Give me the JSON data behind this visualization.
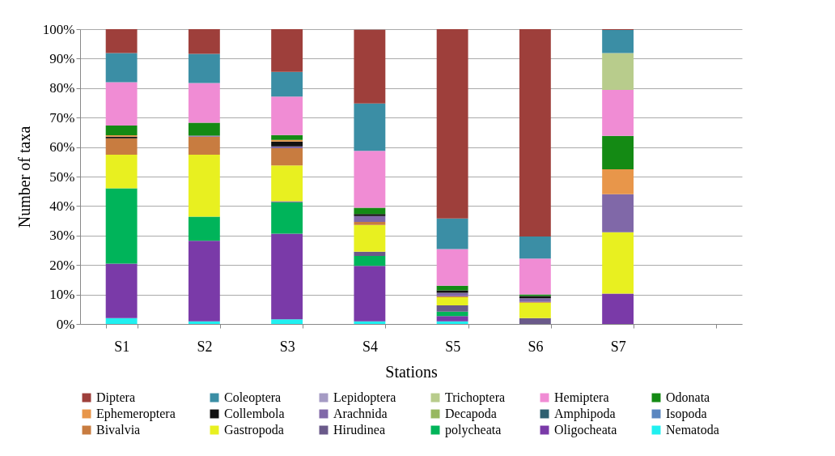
{
  "chart_data": {
    "type": "bar",
    "stacked": true,
    "xlabel": "Stations",
    "ylabel": "Number of taxa",
    "categories": [
      "S1",
      "S2",
      "S3",
      "S4",
      "S5",
      "S6",
      "S7",
      null
    ],
    "ylim": [
      0,
      100
    ],
    "yticks": [
      {
        "value": 0,
        "label": "0%"
      },
      {
        "value": 10,
        "label": "10%"
      },
      {
        "value": 20,
        "label": "20%"
      },
      {
        "value": 30,
        "label": "30%"
      },
      {
        "value": 40,
        "label": "40%"
      },
      {
        "value": 50,
        "label": "50%"
      },
      {
        "value": 60,
        "label": "60%"
      },
      {
        "value": 70,
        "label": "70%"
      },
      {
        "value": 80,
        "label": "80%"
      },
      {
        "value": 90,
        "label": "90%"
      },
      {
        "value": 100,
        "label": "100%"
      }
    ],
    "grid": "y",
    "legend": "bottom",
    "series": [
      {
        "name": "Nematoda",
        "color": "#20f0f0",
        "values": [
          2.0,
          0.9,
          1.6,
          0.9,
          0.9,
          null,
          null,
          null
        ]
      },
      {
        "name": "Oligocheata",
        "color": "#7a3aa8",
        "values": [
          18.5,
          27.3,
          29.0,
          18.8,
          1.8,
          null,
          10.3,
          null
        ]
      },
      {
        "name": "polycheata",
        "color": "#00b45a",
        "values": [
          25.5,
          8.2,
          10.7,
          3.4,
          1.5,
          null,
          null,
          null
        ]
      },
      {
        "name": "Hirudinea",
        "color": "#6a5a8a",
        "values": [
          null,
          null,
          0.3,
          1.4,
          2.1,
          2.0,
          null,
          null
        ]
      },
      {
        "name": "Gastropoda",
        "color": "#e8f020",
        "values": [
          11.4,
          21.0,
          12.2,
          9.1,
          2.8,
          5.2,
          20.8,
          null
        ]
      },
      {
        "name": "Bivalvia",
        "color": "#c87c40",
        "values": [
          5.6,
          6.1,
          5.8,
          1.0,
          0.3,
          0.3,
          null,
          null
        ]
      },
      {
        "name": "Isopoda",
        "color": "#5a86c0",
        "values": [
          null,
          null,
          null,
          null,
          null,
          null,
          null,
          null
        ]
      },
      {
        "name": "Amphipoda",
        "color": "#2e6070",
        "values": [
          null,
          null,
          null,
          null,
          null,
          null,
          null,
          null
        ]
      },
      {
        "name": "Decapoda",
        "color": "#98b860",
        "values": [
          null,
          null,
          null,
          null,
          null,
          null,
          null,
          null
        ]
      },
      {
        "name": "Arachnida",
        "color": "#8068a8",
        "values": [
          null,
          0.4,
          0.6,
          2.0,
          1.2,
          1.2,
          12.9,
          null
        ]
      },
      {
        "name": "Collembola",
        "color": "#111111",
        "values": [
          0.5,
          null,
          1.7,
          0.7,
          0.8,
          0.8,
          null,
          null
        ]
      },
      {
        "name": "Ephemeroptera",
        "color": "#e8964a",
        "values": [
          0.5,
          null,
          0.5,
          null,
          null,
          null,
          8.5,
          null
        ]
      },
      {
        "name": "Odonata",
        "color": "#148a14",
        "values": [
          3.3,
          4.4,
          1.7,
          2.1,
          1.6,
          0.5,
          11.3,
          null
        ]
      },
      {
        "name": "Hemiptera",
        "color": "#f08cd4",
        "values": [
          14.7,
          13.4,
          13.0,
          19.3,
          12.4,
          12.2,
          15.6,
          null
        ]
      },
      {
        "name": "Trichoptera",
        "color": "#b8cc8c",
        "values": [
          null,
          null,
          null,
          null,
          null,
          null,
          12.5,
          null
        ]
      },
      {
        "name": "Lepidoptera",
        "color": "#a59bc4",
        "values": [
          null,
          null,
          null,
          null,
          null,
          null,
          null,
          null
        ]
      },
      {
        "name": "Coleoptera",
        "color": "#3b8ea5",
        "values": [
          9.9,
          9.9,
          8.4,
          16.1,
          10.4,
          7.5,
          7.8,
          null
        ]
      },
      {
        "name": "Diptera",
        "color": "#9e3f3b",
        "values": [
          8.1,
          8.4,
          14.5,
          25.0,
          64.2,
          70.3,
          0.3,
          null
        ]
      }
    ]
  }
}
